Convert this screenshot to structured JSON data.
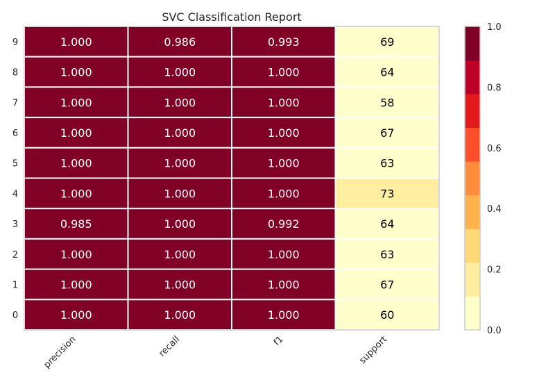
{
  "chart_data": {
    "type": "heatmap",
    "title": "SVC Classification Report",
    "columns": [
      "precision",
      "recall",
      "f1",
      "support"
    ],
    "rows": [
      "9",
      "8",
      "7",
      "6",
      "5",
      "4",
      "3",
      "2",
      "1",
      "0"
    ],
    "cells": [
      [
        "1.000",
        "0.986",
        "0.993",
        "69"
      ],
      [
        "1.000",
        "1.000",
        "1.000",
        "64"
      ],
      [
        "1.000",
        "1.000",
        "1.000",
        "58"
      ],
      [
        "1.000",
        "1.000",
        "1.000",
        "67"
      ],
      [
        "1.000",
        "1.000",
        "1.000",
        "63"
      ],
      [
        "1.000",
        "1.000",
        "1.000",
        "73"
      ],
      [
        "0.985",
        "1.000",
        "0.992",
        "64"
      ],
      [
        "1.000",
        "1.000",
        "1.000",
        "63"
      ],
      [
        "1.000",
        "1.000",
        "1.000",
        "67"
      ],
      [
        "1.000",
        "1.000",
        "1.000",
        "60"
      ]
    ],
    "cell_fill_colors": [
      [
        "#800026",
        "#800026",
        "#800026",
        "#ffffcc"
      ],
      [
        "#800026",
        "#800026",
        "#800026",
        "#ffffcc"
      ],
      [
        "#800026",
        "#800026",
        "#800026",
        "#ffffcc"
      ],
      [
        "#800026",
        "#800026",
        "#800026",
        "#ffffcc"
      ],
      [
        "#800026",
        "#800026",
        "#800026",
        "#ffffcc"
      ],
      [
        "#800026",
        "#800026",
        "#800026",
        "#ffeda0"
      ],
      [
        "#800026",
        "#800026",
        "#800026",
        "#ffffcc"
      ],
      [
        "#800026",
        "#800026",
        "#800026",
        "#ffffcc"
      ],
      [
        "#800026",
        "#800026",
        "#800026",
        "#ffffcc"
      ],
      [
        "#800026",
        "#800026",
        "#800026",
        "#ffffcc"
      ]
    ],
    "cell_text_colors": [
      [
        "#ffffff",
        "#ffffff",
        "#ffffff",
        "#000000"
      ],
      [
        "#ffffff",
        "#ffffff",
        "#ffffff",
        "#000000"
      ],
      [
        "#ffffff",
        "#ffffff",
        "#ffffff",
        "#000000"
      ],
      [
        "#ffffff",
        "#ffffff",
        "#ffffff",
        "#000000"
      ],
      [
        "#ffffff",
        "#ffffff",
        "#ffffff",
        "#000000"
      ],
      [
        "#ffffff",
        "#ffffff",
        "#ffffff",
        "#000000"
      ],
      [
        "#ffffff",
        "#ffffff",
        "#ffffff",
        "#000000"
      ],
      [
        "#ffffff",
        "#ffffff",
        "#ffffff",
        "#000000"
      ],
      [
        "#ffffff",
        "#ffffff",
        "#ffffff",
        "#000000"
      ],
      [
        "#ffffff",
        "#ffffff",
        "#ffffff",
        "#000000"
      ]
    ],
    "colorbar": {
      "range": [
        0.0,
        1.0
      ],
      "ticks": [
        "0.0",
        "0.2",
        "0.4",
        "0.6",
        "0.8",
        "1.0"
      ],
      "tick_values": [
        0.0,
        0.2,
        0.4,
        0.6,
        0.8,
        1.0
      ],
      "colors": [
        "#ffffcc",
        "#ffeda0",
        "#fed976",
        "#feb24c",
        "#fd8d3c",
        "#fc4e2a",
        "#e31a1c",
        "#bd0026",
        "#800026"
      ]
    },
    "grid": true,
    "legend": "right"
  }
}
